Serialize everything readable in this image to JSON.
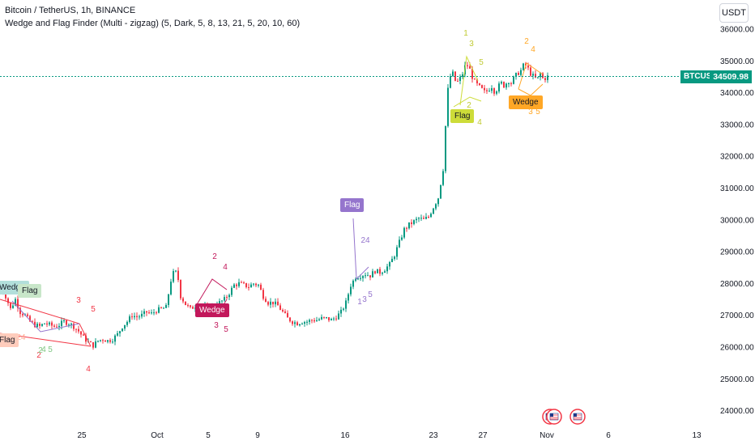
{
  "header": {
    "title": "Bitcoin / TetherUS, 1h, BINANCE",
    "indicator": "Wedge and Flag Finder (Multi - zigzag) (5, Dark, 5, 8, 13, 21, 5, 20, 10, 60)"
  },
  "currency_button": "USDT",
  "price_label": {
    "symbol": "BTCUSDT",
    "value": "34509.98"
  },
  "colors": {
    "up": "#089981",
    "down": "#f23645",
    "price_line": "#089981"
  },
  "chart_data": {
    "type": "candlestick",
    "ylim": [
      23600,
      36400
    ],
    "y_ticks": [
      "36000.00",
      "35000.00",
      "34000.00",
      "33000.00",
      "32000.00",
      "31000.00",
      "30000.00",
      "29000.00",
      "28000.00",
      "27000.00",
      "26000.00",
      "25000.00",
      "24000.00"
    ],
    "y_tick_values": [
      36000,
      35000,
      34000,
      33000,
      32000,
      31000,
      30000,
      29000,
      28000,
      27000,
      26000,
      25000,
      24000
    ],
    "x_ticks": [
      "25",
      "Oct",
      "5",
      "9",
      "16",
      "23",
      "27",
      "Nov",
      "6",
      "13"
    ],
    "current_price": 34509.98,
    "close_path": [
      [
        0,
        27900
      ],
      [
        6,
        27600
      ],
      [
        12,
        27200
      ],
      [
        18,
        27500
      ],
      [
        24,
        27100
      ],
      [
        30,
        27000
      ],
      [
        36,
        26800
      ],
      [
        42,
        26700
      ],
      [
        48,
        26650
      ],
      [
        54,
        26750
      ],
      [
        60,
        26700
      ],
      [
        66,
        26650
      ],
      [
        72,
        26700
      ],
      [
        78,
        26800
      ],
      [
        84,
        26750
      ],
      [
        90,
        26650
      ],
      [
        96,
        26500
      ],
      [
        102,
        26300
      ],
      [
        108,
        26150
      ],
      [
        114,
        26050
      ],
      [
        120,
        26200
      ],
      [
        126,
        26250
      ],
      [
        132,
        26200
      ],
      [
        138,
        26250
      ],
      [
        144,
        26400
      ],
      [
        150,
        26650
      ],
      [
        156,
        26800
      ],
      [
        162,
        27000
      ],
      [
        168,
        26950
      ],
      [
        174,
        27000
      ],
      [
        180,
        27100
      ],
      [
        186,
        27050
      ],
      [
        192,
        27150
      ],
      [
        198,
        27200
      ],
      [
        204,
        27250
      ],
      [
        210,
        28100
      ],
      [
        214,
        28400
      ],
      [
        218,
        28300
      ],
      [
        222,
        27600
      ],
      [
        228,
        27350
      ],
      [
        234,
        27200
      ],
      [
        240,
        27300
      ],
      [
        246,
        27150
      ],
      [
        252,
        27250
      ],
      [
        258,
        27200
      ],
      [
        264,
        27350
      ],
      [
        270,
        27400
      ],
      [
        276,
        27500
      ],
      [
        282,
        27700
      ],
      [
        288,
        27950
      ],
      [
        294,
        28000
      ],
      [
        300,
        27950
      ],
      [
        306,
        27900
      ],
      [
        312,
        28000
      ],
      [
        318,
        27950
      ],
      [
        324,
        27600
      ],
      [
        330,
        27400
      ],
      [
        336,
        27400
      ],
      [
        342,
        27300
      ],
      [
        348,
        27100
      ],
      [
        354,
        26900
      ],
      [
        360,
        26800
      ],
      [
        366,
        26750
      ],
      [
        372,
        26800
      ],
      [
        378,
        26800
      ],
      [
        384,
        26850
      ],
      [
        390,
        26850
      ],
      [
        396,
        26900
      ],
      [
        402,
        26900
      ],
      [
        408,
        26850
      ],
      [
        414,
        26950
      ],
      [
        420,
        27100
      ],
      [
        426,
        27400
      ],
      [
        432,
        27950
      ],
      [
        438,
        28200
      ],
      [
        444,
        28250
      ],
      [
        450,
        28300
      ],
      [
        456,
        28250
      ],
      [
        462,
        28400
      ],
      [
        468,
        28350
      ],
      [
        474,
        28450
      ],
      [
        480,
        28600
      ],
      [
        486,
        28900
      ],
      [
        492,
        29300
      ],
      [
        498,
        29700
      ],
      [
        504,
        29850
      ],
      [
        510,
        29950
      ],
      [
        516,
        30050
      ],
      [
        522,
        30000
      ],
      [
        528,
        30100
      ],
      [
        534,
        30400
      ],
      [
        540,
        30700
      ],
      [
        546,
        31600
      ],
      [
        550,
        33400
      ],
      [
        552,
        34100
      ],
      [
        554,
        34500
      ],
      [
        558,
        34600
      ],
      [
        562,
        34300
      ],
      [
        566,
        34400
      ],
      [
        570,
        34600
      ],
      [
        574,
        34900
      ],
      [
        578,
        34800
      ],
      [
        582,
        34500
      ],
      [
        586,
        34300
      ],
      [
        590,
        34200
      ],
      [
        594,
        34100
      ],
      [
        598,
        34000
      ],
      [
        602,
        34100
      ],
      [
        606,
        34200
      ],
      [
        610,
        34000
      ],
      [
        614,
        34200
      ],
      [
        618,
        34300
      ],
      [
        622,
        34200
      ],
      [
        626,
        34400
      ],
      [
        630,
        34300
      ],
      [
        634,
        34500
      ],
      [
        638,
        34600
      ],
      [
        642,
        34700
      ],
      [
        646,
        34900
      ],
      [
        650,
        34800
      ],
      [
        654,
        34600
      ],
      [
        658,
        34500
      ],
      [
        662,
        34400
      ],
      [
        666,
        34600
      ],
      [
        670,
        34400
      ],
      [
        674,
        34509
      ]
    ],
    "patterns": [
      {
        "label": "Wedge",
        "color": "#b2dfdb"
      },
      {
        "label": "Flag",
        "color": "#c8e6c9"
      },
      {
        "label": "Flag",
        "color": "#ffccbc"
      },
      {
        "label": "Wedge",
        "color": "#c2185b"
      },
      {
        "label": "Flag",
        "color": "#9575cd"
      },
      {
        "label": "Flag",
        "color": "#cddc39"
      },
      {
        "label": "Wedge",
        "color": "#ffa726"
      }
    ],
    "wave_labels": [
      {
        "text": "3",
        "color": "#f23645"
      },
      {
        "text": "5",
        "color": "#f23645"
      },
      {
        "text": "2",
        "color": "#f23645"
      },
      {
        "text": "4",
        "color": "#f23645"
      },
      {
        "text": "2",
        "color": "#c2185b"
      },
      {
        "text": "4",
        "color": "#c2185b"
      },
      {
        "text": "3",
        "color": "#c2185b"
      },
      {
        "text": "5",
        "color": "#c2185b"
      },
      {
        "text": "2",
        "color": "#81c784"
      },
      {
        "text": "4",
        "color": "#81c784"
      },
      {
        "text": "5",
        "color": "#81c784"
      },
      {
        "text": "24",
        "color": "#ffab91"
      },
      {
        "text": "24",
        "color": "#9575cd"
      },
      {
        "text": "1",
        "color": "#9575cd"
      },
      {
        "text": "3",
        "color": "#9575cd"
      },
      {
        "text": "5",
        "color": "#9575cd"
      },
      {
        "text": "1",
        "color": "#c0ca33"
      },
      {
        "text": "3",
        "color": "#c0ca33"
      },
      {
        "text": "5",
        "color": "#c0ca33"
      },
      {
        "text": "2",
        "color": "#c0ca33"
      },
      {
        "text": "4",
        "color": "#c0ca33"
      },
      {
        "text": "2",
        "color": "#ffa726"
      },
      {
        "text": "4",
        "color": "#ffa726"
      },
      {
        "text": "3",
        "color": "#ffa726"
      },
      {
        "text": "5",
        "color": "#ffa726"
      }
    ]
  }
}
